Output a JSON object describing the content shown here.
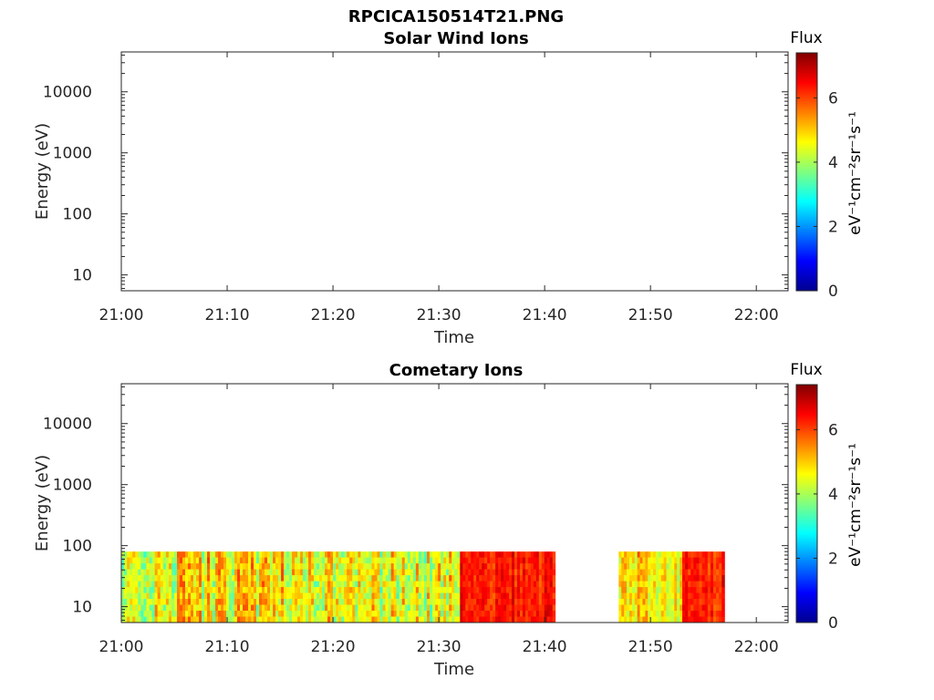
{
  "figure_title": "RPCICA150514T21.PNG",
  "chart_data": [
    {
      "type": "heatmap",
      "title": "Solar Wind Ions",
      "xlabel": "Time",
      "ylabel": "Energy (eV)",
      "y_scale": "log",
      "xlim": [
        "21:00",
        "22:03"
      ],
      "ylim": [
        5.5,
        45000
      ],
      "xticks": [
        "21:00",
        "21:10",
        "21:20",
        "21:30",
        "21:40",
        "21:50",
        "22:00"
      ],
      "yticks": [
        "10",
        "100",
        "1000",
        "10000"
      ],
      "colorbar": {
        "title": "Flux",
        "label": "eV⁻¹cm⁻²sr⁻¹s⁻¹",
        "ticks": [
          "0",
          "2",
          "4",
          "6"
        ],
        "range": [
          0,
          7.4
        ],
        "colormap": "jet"
      },
      "segments": []
    },
    {
      "type": "heatmap",
      "title": "Cometary Ions",
      "xlabel": "Time",
      "ylabel": "Energy (eV)",
      "y_scale": "log",
      "xlim": [
        "21:00",
        "22:03"
      ],
      "ylim": [
        5.5,
        45000
      ],
      "xticks": [
        "21:00",
        "21:10",
        "21:20",
        "21:30",
        "21:40",
        "21:50",
        "22:00"
      ],
      "yticks": [
        "10",
        "100",
        "1000",
        "10000"
      ],
      "colorbar": {
        "title": "Flux",
        "label": "eV⁻¹cm⁻²sr⁻¹s⁻¹",
        "ticks": [
          "0",
          "2",
          "4",
          "6"
        ],
        "range": [
          0,
          7.4
        ],
        "colormap": "jet"
      },
      "energy_range_eV": [
        5.5,
        80
      ],
      "segments": [
        {
          "start": "21:00",
          "end": "21:05",
          "flux_min": 3.0,
          "flux_max": 5.8
        },
        {
          "start": "21:05",
          "end": "21:20",
          "flux_min": 3.2,
          "flux_max": 6.2
        },
        {
          "start": "21:20",
          "end": "21:32",
          "flux_min": 3.0,
          "flux_max": 6.0
        },
        {
          "start": "21:32",
          "end": "21:41",
          "flux_min": 5.6,
          "flux_max": 7.0
        },
        {
          "start": "21:47",
          "end": "21:50",
          "flux_min": 3.8,
          "flux_max": 6.4
        },
        {
          "start": "21:50",
          "end": "21:53",
          "flux_min": 3.6,
          "flux_max": 5.4
        },
        {
          "start": "21:53",
          "end": "21:57",
          "flux_min": 5.6,
          "flux_max": 7.0
        }
      ]
    }
  ]
}
